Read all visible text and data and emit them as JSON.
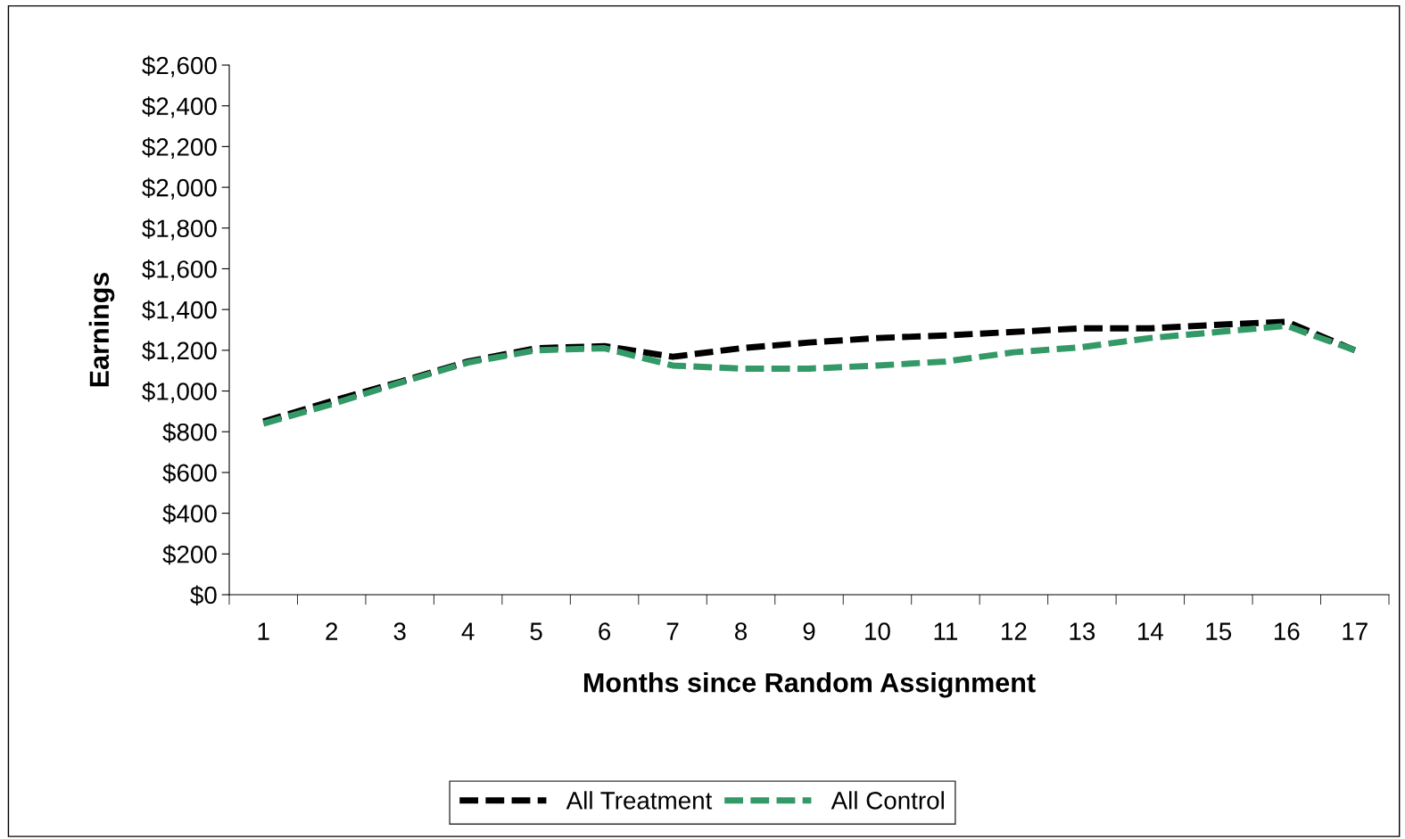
{
  "chart_data": {
    "type": "line",
    "xlabel": "Months since Random Assignment",
    "ylabel": "Earnings",
    "categories": [
      "1",
      "2",
      "3",
      "4",
      "5",
      "6",
      "7",
      "8",
      "9",
      "10",
      "11",
      "12",
      "13",
      "14",
      "15",
      "16",
      "17"
    ],
    "series": [
      {
        "name": "All Treatment",
        "color": "#000000",
        "values": [
          850,
          950,
          1045,
          1145,
          1210,
          1220,
          1168,
          1210,
          1238,
          1260,
          1273,
          1290,
          1308,
          1308,
          1325,
          1340,
          1200
        ]
      },
      {
        "name": "All Control",
        "color": "#339966",
        "values": [
          840,
          935,
          1040,
          1140,
          1200,
          1210,
          1125,
          1110,
          1110,
          1125,
          1145,
          1190,
          1215,
          1260,
          1290,
          1320,
          1200
        ]
      }
    ],
    "ylim": [
      0,
      2600
    ],
    "yticks": [
      {
        "value": 0,
        "label": "$0"
      },
      {
        "value": 200,
        "label": "$200"
      },
      {
        "value": 400,
        "label": "$400"
      },
      {
        "value": 600,
        "label": "$600"
      },
      {
        "value": 800,
        "label": "$800"
      },
      {
        "value": 1000,
        "label": "$1,000"
      },
      {
        "value": 1200,
        "label": "$1,200"
      },
      {
        "value": 1400,
        "label": "$1,400"
      },
      {
        "value": 1600,
        "label": "$1,600"
      },
      {
        "value": 1800,
        "label": "$1,800"
      },
      {
        "value": 2000,
        "label": "$2,000"
      },
      {
        "value": 2200,
        "label": "$2,200"
      },
      {
        "value": 2400,
        "label": "$2,400"
      },
      {
        "value": 2600,
        "label": "$2,600"
      }
    ],
    "grid": false,
    "legend": "bottom",
    "line_style": "dashed",
    "marker": "none"
  }
}
